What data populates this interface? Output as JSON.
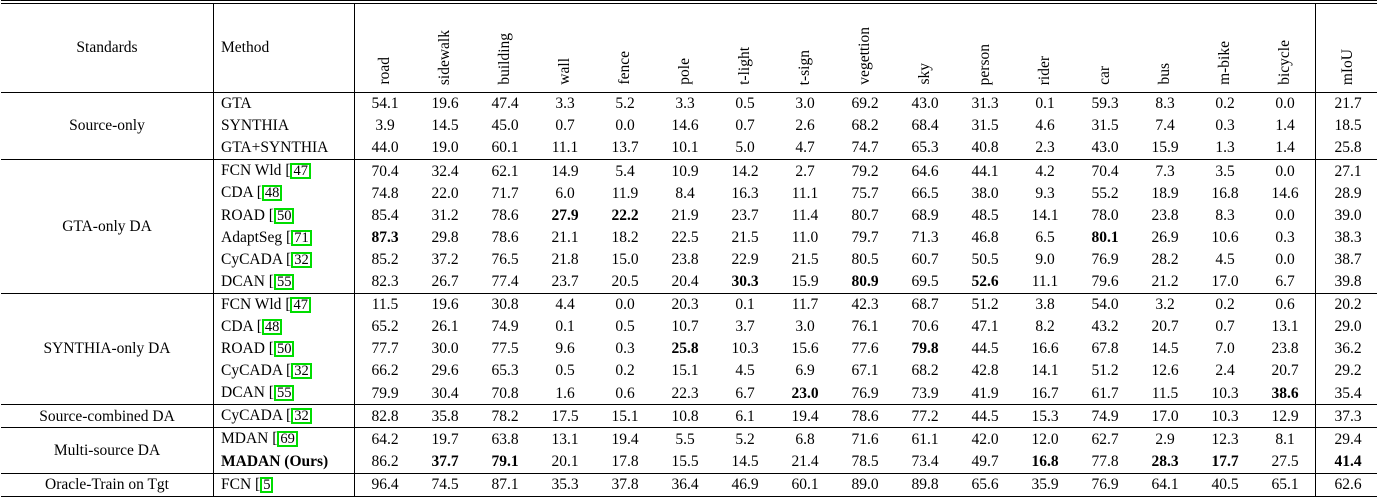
{
  "table": {
    "standards_header": "Standards",
    "method_header": "Method",
    "miou_header": "mIoU",
    "cite_prefix": "[",
    "cite_box_color": "#00dd00",
    "class_headers": [
      "road",
      "sidewalk",
      "building",
      "wall",
      "fence",
      "pole",
      "t-light",
      "t-sign",
      "vegettion",
      "sky",
      "person",
      "rider",
      "car",
      "bus",
      "m-bike",
      "bicycle"
    ],
    "groups": [
      {
        "standard": "Source-only",
        "rows": [
          {
            "method": "GTA",
            "cite": null,
            "bold_method": false,
            "values": [
              "54.1",
              "19.6",
              "47.4",
              "3.3",
              "5.2",
              "3.3",
              "0.5",
              "3.0",
              "69.2",
              "43.0",
              "31.3",
              "0.1",
              "59.3",
              "8.3",
              "0.2",
              "0.0"
            ],
            "bold": [],
            "miou": "21.7",
            "miou_bold": false
          },
          {
            "method": "SYNTHIA",
            "cite": null,
            "bold_method": false,
            "values": [
              "3.9",
              "14.5",
              "45.0",
              "0.7",
              "0.0",
              "14.6",
              "0.7",
              "2.6",
              "68.2",
              "68.4",
              "31.5",
              "4.6",
              "31.5",
              "7.4",
              "0.3",
              "1.4"
            ],
            "bold": [],
            "miou": "18.5",
            "miou_bold": false
          },
          {
            "method": "GTA+SYNTHIA",
            "cite": null,
            "bold_method": false,
            "values": [
              "44.0",
              "19.0",
              "60.1",
              "11.1",
              "13.7",
              "10.1",
              "5.0",
              "4.7",
              "74.7",
              "65.3",
              "40.8",
              "2.3",
              "43.0",
              "15.9",
              "1.3",
              "1.4"
            ],
            "bold": [],
            "miou": "25.8",
            "miou_bold": false
          }
        ]
      },
      {
        "standard": "GTA-only DA",
        "rows": [
          {
            "method": "FCN Wld",
            "cite": "47",
            "bold_method": false,
            "values": [
              "70.4",
              "32.4",
              "62.1",
              "14.9",
              "5.4",
              "10.9",
              "14.2",
              "2.7",
              "79.2",
              "64.6",
              "44.1",
              "4.2",
              "70.4",
              "7.3",
              "3.5",
              "0.0"
            ],
            "bold": [],
            "miou": "27.1",
            "miou_bold": false
          },
          {
            "method": "CDA",
            "cite": "48",
            "bold_method": false,
            "values": [
              "74.8",
              "22.0",
              "71.7",
              "6.0",
              "11.9",
              "8.4",
              "16.3",
              "11.1",
              "75.7",
              "66.5",
              "38.0",
              "9.3",
              "55.2",
              "18.9",
              "16.8",
              "14.6"
            ],
            "bold": [],
            "miou": "28.9",
            "miou_bold": false
          },
          {
            "method": "ROAD",
            "cite": "50",
            "bold_method": false,
            "values": [
              "85.4",
              "31.2",
              "78.6",
              "27.9",
              "22.2",
              "21.9",
              "23.7",
              "11.4",
              "80.7",
              "68.9",
              "48.5",
              "14.1",
              "78.0",
              "23.8",
              "8.3",
              "0.0"
            ],
            "bold": [
              3,
              4
            ],
            "miou": "39.0",
            "miou_bold": false
          },
          {
            "method": "AdaptSeg",
            "cite": "71",
            "bold_method": false,
            "values": [
              "87.3",
              "29.8",
              "78.6",
              "21.1",
              "18.2",
              "22.5",
              "21.5",
              "11.0",
              "79.7",
              "71.3",
              "46.8",
              "6.5",
              "80.1",
              "26.9",
              "10.6",
              "0.3"
            ],
            "bold": [
              0,
              12
            ],
            "miou": "38.3",
            "miou_bold": false
          },
          {
            "method": "CyCADA",
            "cite": "32",
            "bold_method": false,
            "values": [
              "85.2",
              "37.2",
              "76.5",
              "21.8",
              "15.0",
              "23.8",
              "22.9",
              "21.5",
              "80.5",
              "60.7",
              "50.5",
              "9.0",
              "76.9",
              "28.2",
              "4.5",
              "0.0"
            ],
            "bold": [],
            "miou": "38.7",
            "miou_bold": false
          },
          {
            "method": "DCAN",
            "cite": "55",
            "bold_method": false,
            "values": [
              "82.3",
              "26.7",
              "77.4",
              "23.7",
              "20.5",
              "20.4",
              "30.3",
              "15.9",
              "80.9",
              "69.5",
              "52.6",
              "11.1",
              "79.6",
              "21.2",
              "17.0",
              "6.7"
            ],
            "bold": [
              6,
              8,
              10
            ],
            "miou": "39.8",
            "miou_bold": false
          }
        ]
      },
      {
        "standard": "SYNTHIA-only DA",
        "rows": [
          {
            "method": "FCN Wld",
            "cite": "47",
            "bold_method": false,
            "values": [
              "11.5",
              "19.6",
              "30.8",
              "4.4",
              "0.0",
              "20.3",
              "0.1",
              "11.7",
              "42.3",
              "68.7",
              "51.2",
              "3.8",
              "54.0",
              "3.2",
              "0.2",
              "0.6"
            ],
            "bold": [],
            "miou": "20.2",
            "miou_bold": false
          },
          {
            "method": "CDA",
            "cite": "48",
            "bold_method": false,
            "values": [
              "65.2",
              "26.1",
              "74.9",
              "0.1",
              "0.5",
              "10.7",
              "3.7",
              "3.0",
              "76.1",
              "70.6",
              "47.1",
              "8.2",
              "43.2",
              "20.7",
              "0.7",
              "13.1"
            ],
            "bold": [],
            "miou": "29.0",
            "miou_bold": false
          },
          {
            "method": "ROAD",
            "cite": "50",
            "bold_method": false,
            "values": [
              "77.7",
              "30.0",
              "77.5",
              "9.6",
              "0.3",
              "25.8",
              "10.3",
              "15.6",
              "77.6",
              "79.8",
              "44.5",
              "16.6",
              "67.8",
              "14.5",
              "7.0",
              "23.8"
            ],
            "bold": [
              5,
              9
            ],
            "miou": "36.2",
            "miou_bold": false
          },
          {
            "method": "CyCADA",
            "cite": "32",
            "bold_method": false,
            "values": [
              "66.2",
              "29.6",
              "65.3",
              "0.5",
              "0.2",
              "15.1",
              "4.5",
              "6.9",
              "67.1",
              "68.2",
              "42.8",
              "14.1",
              "51.2",
              "12.6",
              "2.4",
              "20.7"
            ],
            "bold": [],
            "miou": "29.2",
            "miou_bold": false
          },
          {
            "method": "DCAN",
            "cite": "55",
            "bold_method": false,
            "values": [
              "79.9",
              "30.4",
              "70.8",
              "1.6",
              "0.6",
              "22.3",
              "6.7",
              "23.0",
              "76.9",
              "73.9",
              "41.9",
              "16.7",
              "61.7",
              "11.5",
              "10.3",
              "38.6"
            ],
            "bold": [
              7,
              15
            ],
            "miou": "35.4",
            "miou_bold": false
          }
        ]
      },
      {
        "standard": "Source-combined DA",
        "rows": [
          {
            "method": "CyCADA",
            "cite": "32",
            "bold_method": false,
            "values": [
              "82.8",
              "35.8",
              "78.2",
              "17.5",
              "15.1",
              "10.8",
              "6.1",
              "19.4",
              "78.6",
              "77.2",
              "44.5",
              "15.3",
              "74.9",
              "17.0",
              "10.3",
              "12.9"
            ],
            "bold": [],
            "miou": "37.3",
            "miou_bold": false
          }
        ]
      },
      {
        "standard": "Multi-source DA",
        "rows": [
          {
            "method": "MDAN",
            "cite": "69",
            "bold_method": false,
            "values": [
              "64.2",
              "19.7",
              "63.8",
              "13.1",
              "19.4",
              "5.5",
              "5.2",
              "6.8",
              "71.6",
              "61.1",
              "42.0",
              "12.0",
              "62.7",
              "2.9",
              "12.3",
              "8.1"
            ],
            "bold": [],
            "miou": "29.4",
            "miou_bold": false
          },
          {
            "method": "MADAN (Ours)",
            "cite": null,
            "bold_method": true,
            "values": [
              "86.2",
              "37.7",
              "79.1",
              "20.1",
              "17.8",
              "15.5",
              "14.5",
              "21.4",
              "78.5",
              "73.4",
              "49.7",
              "16.8",
              "77.8",
              "28.3",
              "17.7",
              "27.5"
            ],
            "bold": [
              1,
              2,
              11,
              13,
              14
            ],
            "miou": "41.4",
            "miou_bold": true
          }
        ]
      },
      {
        "standard": "Oracle-Train on Tgt",
        "rows": [
          {
            "method": "FCN",
            "cite": "5",
            "bold_method": false,
            "values": [
              "96.4",
              "74.5",
              "87.1",
              "35.3",
              "37.8",
              "36.4",
              "46.9",
              "60.1",
              "89.0",
              "89.8",
              "65.6",
              "35.9",
              "76.9",
              "64.1",
              "40.5",
              "65.1"
            ],
            "bold": [],
            "miou": "62.6",
            "miou_bold": false
          }
        ]
      }
    ]
  }
}
